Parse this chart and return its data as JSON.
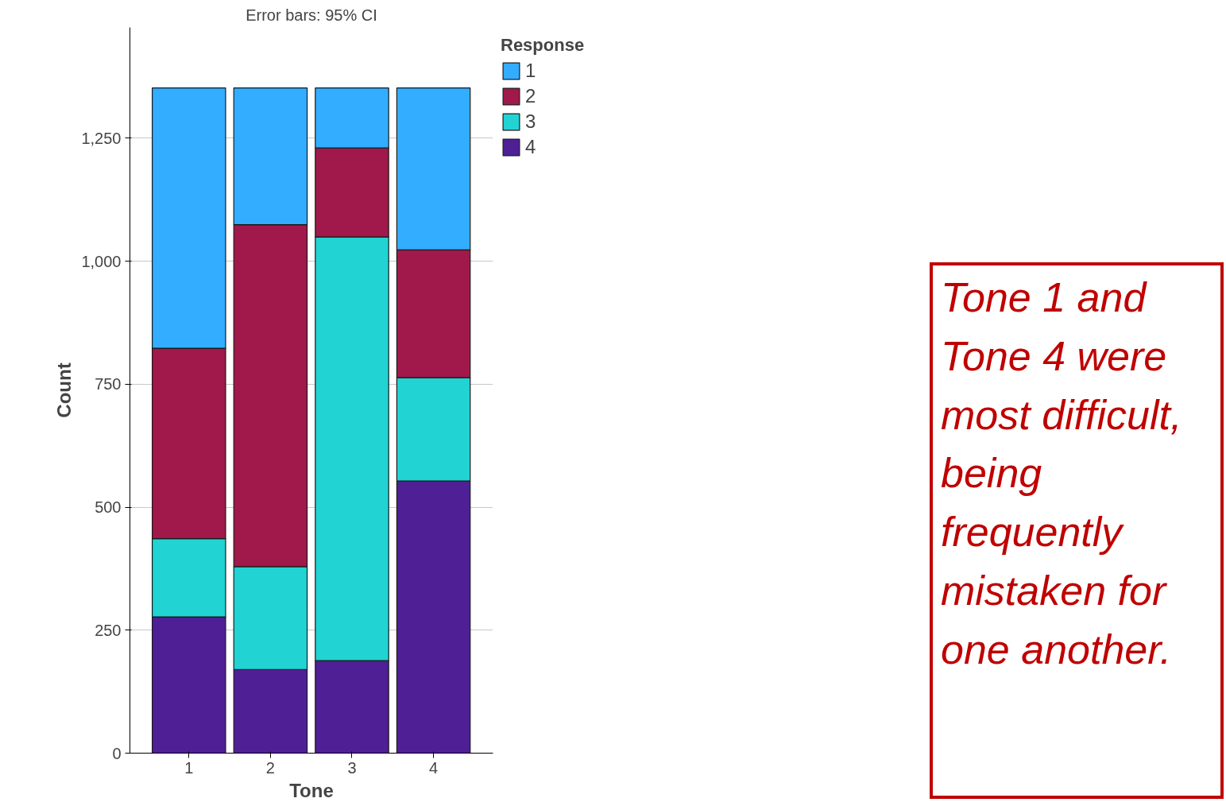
{
  "chart_data": {
    "type": "bar",
    "stacked": true,
    "title": "Error bars: 95% CI",
    "xlabel": "Tone",
    "ylabel": "Count",
    "legend_title": "Response",
    "categories": [
      "1",
      "2",
      "3",
      "4"
    ],
    "series": [
      {
        "name": "4",
        "color": "#4f1f96",
        "values": [
          277,
          170,
          188,
          553
        ]
      },
      {
        "name": "3",
        "color": "#22d3d3",
        "values": [
          159,
          209,
          861,
          210
        ]
      },
      {
        "name": "2",
        "color": "#a0194a",
        "values": [
          387,
          695,
          181,
          260
        ]
      },
      {
        "name": "1",
        "color": "#33adff",
        "values": [
          529,
          278,
          122,
          329
        ]
      }
    ],
    "ylim": [
      0,
      1475
    ],
    "yticks": [
      0,
      {
        "value": 250,
        "label": "250"
      },
      500,
      750,
      {
        "value": 1000,
        "label": "1,000"
      },
      {
        "value": 1250,
        "label": "1,250"
      }
    ],
    "grid": "y",
    "legend": "top right",
    "annotations": [
      "Tone 1 and\nTone 4 were\nmost difficult,\nbeing\nfrequently\nmistaken for\none another."
    ]
  }
}
